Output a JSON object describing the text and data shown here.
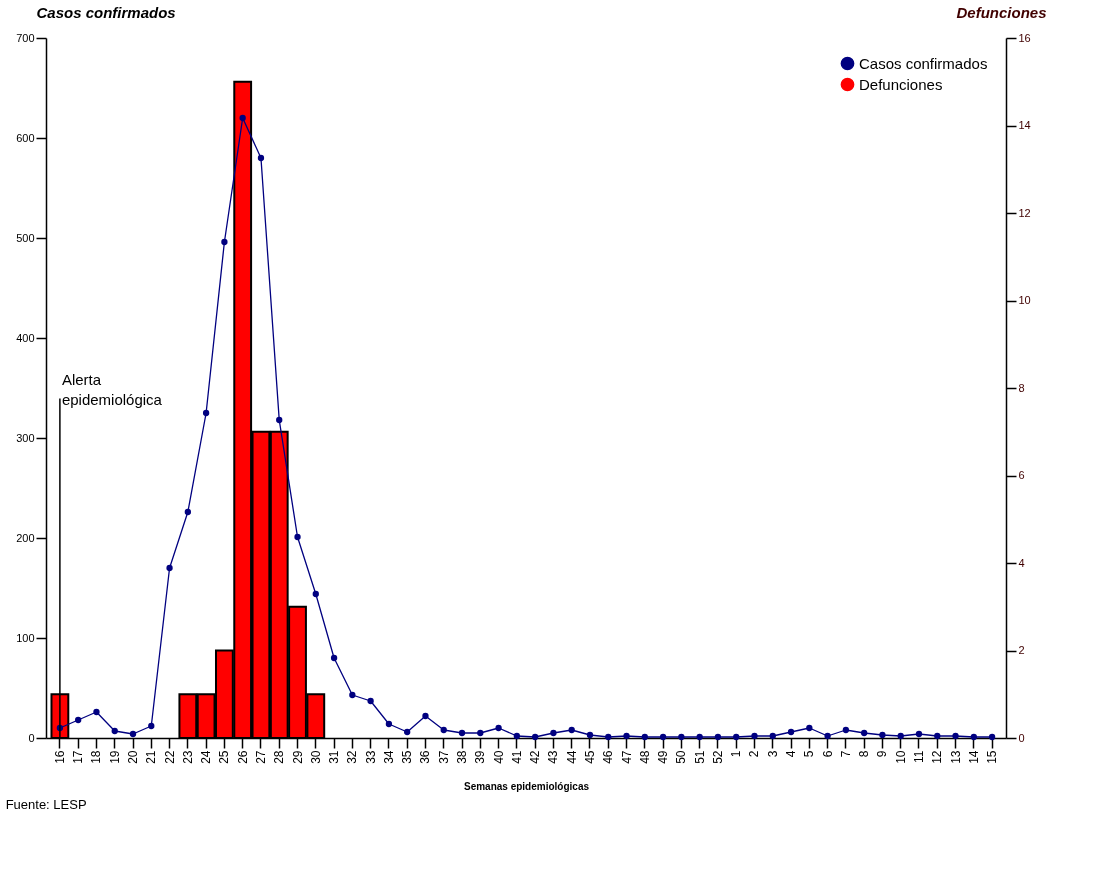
{
  "chart_data": {
    "type": "bar",
    "ylabel": "Casos confirmados",
    "y2label": "Defunciones",
    "xlabel": "Semanas epidemiológicas",
    "categories": [
      "16",
      "17",
      "18",
      "19",
      "20",
      "21",
      "22",
      "23",
      "24",
      "25",
      "26",
      "27",
      "28",
      "29",
      "30",
      "31",
      "32",
      "33",
      "34",
      "35",
      "36",
      "37",
      "38",
      "39",
      "40",
      "41",
      "42",
      "43",
      "44",
      "45",
      "46",
      "47",
      "48",
      "49",
      "50",
      "51",
      "52",
      "1",
      "2",
      "3",
      "4",
      "5",
      "6",
      "7",
      "8",
      "9",
      "10",
      "11",
      "12",
      "13",
      "14",
      "15"
    ],
    "series": [
      {
        "name": "Defunciones",
        "axis": "y2",
        "color": "#ff0000",
        "values": [
          1,
          0,
          0,
          0,
          0,
          0,
          0,
          1,
          1,
          2,
          15,
          7,
          7,
          3,
          1,
          0,
          0,
          0,
          0,
          0,
          0,
          0,
          0,
          0,
          0,
          0,
          0,
          0,
          0,
          0,
          0,
          0,
          0,
          0,
          0,
          0,
          0,
          0,
          0,
          0,
          0,
          0,
          0,
          0,
          0,
          0,
          0,
          0,
          0,
          0,
          0,
          0
        ]
      },
      {
        "name": "Casos confirmados",
        "type": "line",
        "color": "#000080",
        "values": [
          10,
          18,
          26,
          7,
          4,
          12,
          170,
          226,
          325,
          496,
          620,
          580,
          318,
          201,
          144,
          80,
          43,
          37,
          14,
          6,
          22,
          8,
          5,
          5,
          10,
          2,
          1,
          5,
          8,
          3,
          1,
          2,
          1,
          1,
          1,
          1,
          1,
          1,
          2,
          2,
          6,
          10,
          2,
          8,
          5,
          3,
          2,
          4,
          2,
          2,
          1,
          1
        ]
      }
    ],
    "ylim": [
      0,
      700
    ],
    "yticks": [
      0,
      100,
      200,
      300,
      400,
      500,
      600,
      700
    ],
    "y2lim": [
      0,
      16
    ],
    "y2ticks": [
      0,
      2,
      4,
      6,
      8,
      10,
      12,
      14,
      16
    ],
    "ref_lines": [
      {
        "axis": "x",
        "value": "16",
        "label": "Alerta epidemiológica"
      }
    ],
    "annotations": [
      "Fuente: LESP"
    ],
    "legend": "top right",
    "marker": "circle",
    "grid": false
  }
}
